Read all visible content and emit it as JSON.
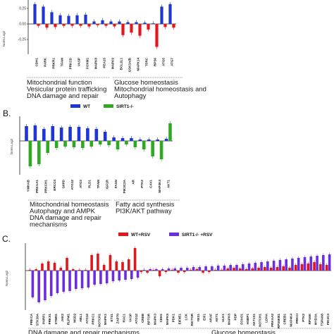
{
  "colors": {
    "wt": "#1f35d6",
    "sirt": "#2fa822",
    "wt_rsv": "#e0181e",
    "sirt_rsv": "#6a2ee0",
    "panelA_pos": "#1f35d6",
    "panelA_neg": "#e0181e"
  },
  "chart_data": [
    {
      "type": "bar",
      "panel_label": "",
      "ylabel": "Norm.Log2",
      "ylim": [
        -0.45,
        0.3
      ],
      "yticks": [
        "0.25",
        "0.00",
        "-0.25"
      ],
      "yticks_values": [
        0.25,
        0,
        -0.25
      ],
      "categories": [
        "CDH1",
        "PARK",
        "PRKR1",
        "TFAM",
        "PRKCD",
        "VASP",
        "FOXM1",
        "MAPK8",
        "PEA15",
        "MAPK9",
        "BCL2L1",
        "GSK3A/B",
        "MAPK14",
        "TFRC",
        "RPS6",
        "ATG5",
        "ATG7"
      ],
      "series": [
        {
          "name": "",
          "values": [
            [
              -0.03,
              0.32
            ],
            [
              -0.06,
              0.28
            ],
            [
              -0.05,
              0.19
            ],
            [
              -0.03,
              0.14
            ],
            [
              -0.03,
              0.13
            ],
            [
              -0.03,
              0.14
            ],
            [
              -0.04,
              0.15
            ],
            [
              -0.02,
              0.04
            ],
            [
              -0.03,
              0.06
            ],
            [
              -0.04,
              0.04
            ],
            [
              -0.18,
              0.04
            ],
            [
              -0.14,
              0.03
            ],
            [
              -0.19,
              0.03
            ],
            [
              -0.09,
              0.02
            ],
            [
              -0.37,
              0.01
            ],
            [
              -0.05,
              0.28
            ],
            [
              -0.06,
              0.32
            ]
          ]
        }
      ],
      "groups": [
        {
          "lines": [
            "Mitochondrial function",
            "Vesicular protein trafficking",
            "DNA damage and repair"
          ]
        },
        {
          "lines": [
            "Glucose homeostasis",
            "Mitochondrial homeostasis and",
            "Autophagy"
          ]
        }
      ]
    },
    {
      "type": "bar",
      "panel_label": "B.",
      "ylabel": "Norm.Log2",
      "legend": [
        "WT",
        "SIRT1-/-"
      ],
      "ylim": [
        -0.45,
        0.3
      ],
      "categories": [
        "YWHAB",
        "PRKAA1",
        "PRKCH1",
        "ERCC4",
        "G6PD",
        "ATG12",
        "ATG3",
        "PLD1",
        "TFAM",
        "IGF1R",
        "FASN",
        "PIK3C2A",
        "AR",
        "PTK2",
        "CAV1",
        "MAP4K4",
        "AKT1"
      ],
      "series": [
        {
          "name": "WT",
          "values": [
            0.21,
            0.22,
            0.17,
            0.21,
            0.19,
            0.2,
            0.2,
            0.18,
            0.17,
            0.13,
            0.05,
            0.04,
            0.04,
            0.02,
            0.02,
            0.02,
            0.03
          ]
        },
        {
          "name": "SIRT1-/-",
          "values": [
            -0.36,
            -0.33,
            -0.17,
            -0.1,
            -0.08,
            -0.09,
            -0.1,
            -0.08,
            -0.05,
            -0.06,
            -0.12,
            -0.05,
            -0.09,
            -0.12,
            -0.22,
            -0.26,
            0.25
          ]
        }
      ],
      "groups": [
        {
          "lines": [
            "Mitochondrial homeostasis",
            "Autophagy and AMPK",
            "DNA damage and repair",
            "mechanisms"
          ]
        },
        {
          "lines": [
            "Fatty acid synthesis",
            "PI3K/AKT pathway"
          ]
        }
      ]
    },
    {
      "type": "bar",
      "panel_label": "C.",
      "ylabel": "Norm.Log2",
      "legend": [
        "WT+RSV",
        "SIRT1-/- +RSV"
      ],
      "ylim": [
        -0.6,
        0.45
      ],
      "categories": [
        "PRKCA",
        "STK39A",
        "PARP1",
        "PRKX1",
        "STMN1",
        "JAK2",
        "RLPW1",
        "MSD2",
        "ABL1",
        "ATG12",
        "PRKC1",
        "NOTCH1",
        "MAPK1",
        "ETS1",
        "ZAP70",
        "RAC1",
        "VASP",
        "ATG12",
        "CREB",
        "RPTOR",
        "MAPK3",
        "CDH1",
        "MAPK9",
        "PDK1",
        "EIF4E1",
        "LCK",
        "RICTOR",
        "YES1",
        "EIF1",
        "ARAF",
        "AKT1",
        "ULK1",
        "MAPK8",
        "PDP",
        "FOXO1",
        "HSBP1",
        "AKT1S1",
        "NOTCH1",
        "LDHA",
        "PRKAA2",
        "RPS6KB1",
        "CREB1",
        "MAP4K4",
        "PRKCI",
        "PTK2",
        "RPS6K",
        "MYD3A",
        "TSPAN8",
        "PIK3C3"
      ],
      "series": [
        {
          "name": "WT+RSV",
          "values": [
            0.01,
            0.02,
            0.1,
            0.13,
            0.11,
            0.04,
            0.18,
            0.02,
            0.01,
            0.01,
            0.22,
            0.24,
            0.08,
            0.22,
            0.13,
            0.12,
            0.16,
            0.32,
            -0.02,
            -0.03,
            0.01,
            -0.08,
            -0.02,
            0.01,
            -0.03,
            -0.02,
            0.01,
            0.02,
            -0.03,
            -0.02,
            0.01,
            0.01,
            0.03,
            0.04,
            0.03,
            0.02,
            0.03,
            0.04,
            0.05,
            0.04,
            0.05,
            0.06,
            0.04,
            0.08,
            0.09,
            0.1,
            0.12,
            0.09,
            0.08
          ]
        },
        {
          "name": "SIRT1-/- +RSV",
          "values": [
            -0.38,
            -0.45,
            -0.42,
            -0.36,
            -0.32,
            -0.3,
            -0.29,
            -0.26,
            -0.25,
            -0.24,
            -0.2,
            -0.19,
            -0.18,
            -0.15,
            -0.14,
            -0.13,
            -0.12,
            -0.1,
            0.01,
            0.02,
            0.02,
            0.02,
            0.03,
            0.03,
            0.04,
            0.04,
            0.05,
            0.05,
            0.06,
            0.06,
            0.07,
            0.07,
            0.08,
            0.08,
            0.09,
            0.1,
            0.11,
            0.12,
            0.13,
            0.14,
            0.15,
            0.16,
            0.17,
            0.18,
            0.19,
            0.2,
            0.21,
            0.22,
            0.23
          ]
        }
      ],
      "groups": [
        {
          "lines": [
            "DNA damage and repair mechanisms"
          ]
        },
        {
          "lines": [
            "Glucose homeostasis"
          ]
        }
      ]
    }
  ]
}
